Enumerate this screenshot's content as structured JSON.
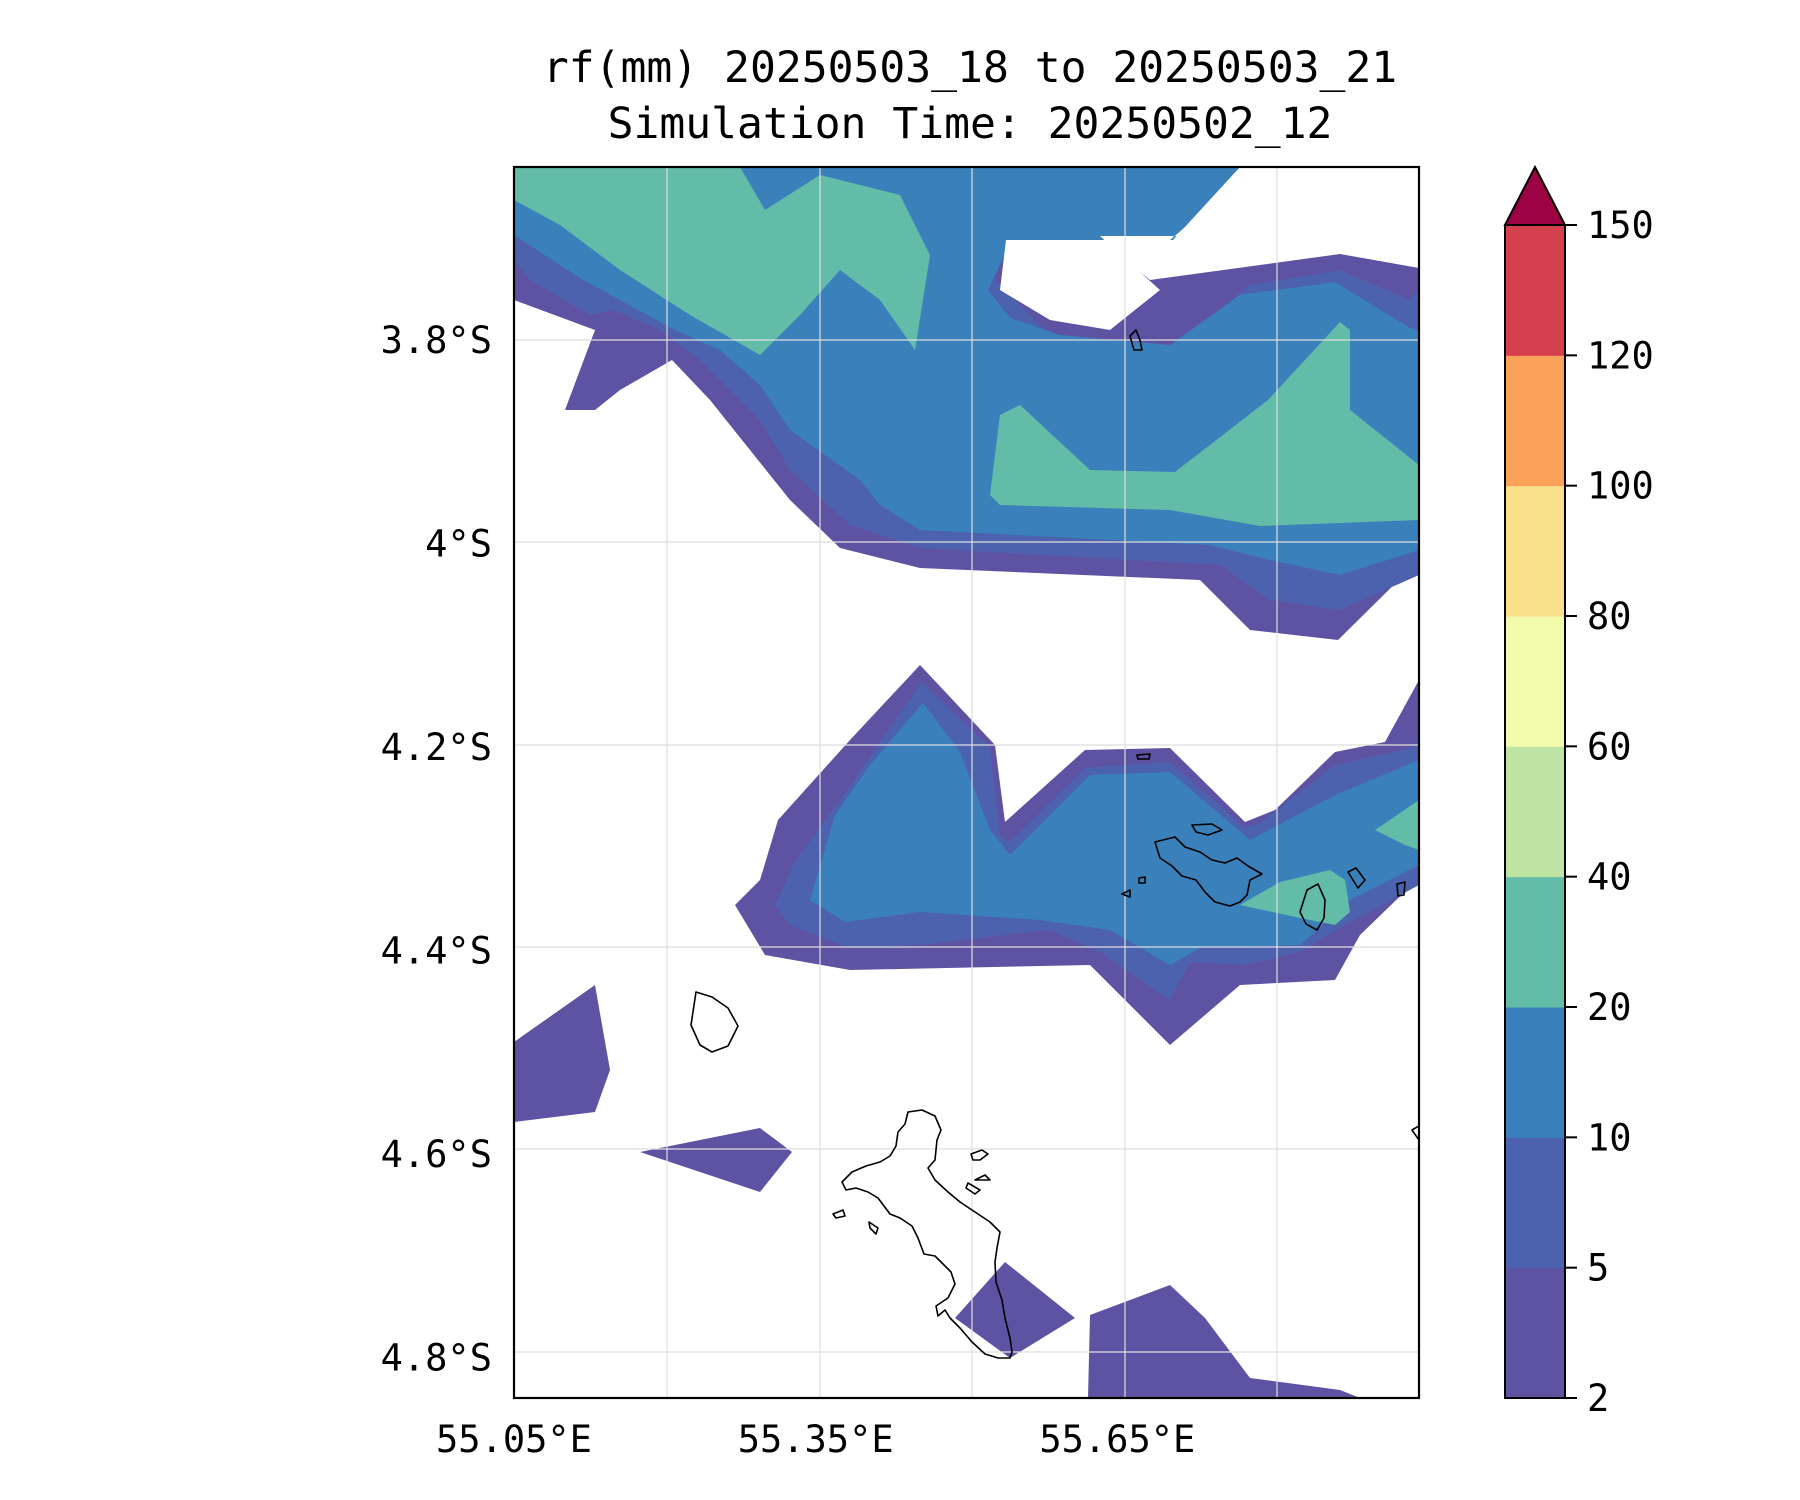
{
  "title": {
    "line1": "rf(mm) 20250503_18 to 20250503_21",
    "line2": "Simulation Time: 20250502_12"
  },
  "map": {
    "lat_ticks": [
      {
        "value": -3.8,
        "label": "3.8°S"
      },
      {
        "value": -4.0,
        "label": "4°S"
      },
      {
        "value": -4.2,
        "label": "4.2°S"
      },
      {
        "value": -4.4,
        "label": "4.4°S"
      },
      {
        "value": -4.6,
        "label": "4.6°S"
      },
      {
        "value": -4.8,
        "label": "4.8°S"
      }
    ],
    "lon_ticks": [
      {
        "value": 55.05,
        "label": "55.05°E"
      },
      {
        "value": 55.35,
        "label": "55.35°E"
      },
      {
        "value": 55.65,
        "label": "55.65°E"
      }
    ],
    "extent": {
      "lon_min": 55.05,
      "lon_max": 55.95,
      "lat_min": -4.84,
      "lat_max": -3.63
    }
  },
  "colorbar": {
    "levels": [
      2,
      5,
      10,
      20,
      40,
      60,
      80,
      100,
      120,
      150
    ],
    "labels": [
      "2",
      "5",
      "10",
      "20",
      "40",
      "60",
      "80",
      "100",
      "120",
      "150"
    ],
    "colors": [
      "#5e52a3",
      "#4c62ae",
      "#3a80bb",
      "#63bca8",
      "#bde4a2",
      "#f3fbad",
      "#fbe08c",
      "#faa15a",
      "#d5404f",
      "#9c0244"
    ],
    "extend": "max"
  },
  "colors": {
    "level_2": "#5e52a3",
    "level_5": "#4c62ae",
    "level_10": "#3a80bb",
    "level_20": "#63bca8"
  }
}
